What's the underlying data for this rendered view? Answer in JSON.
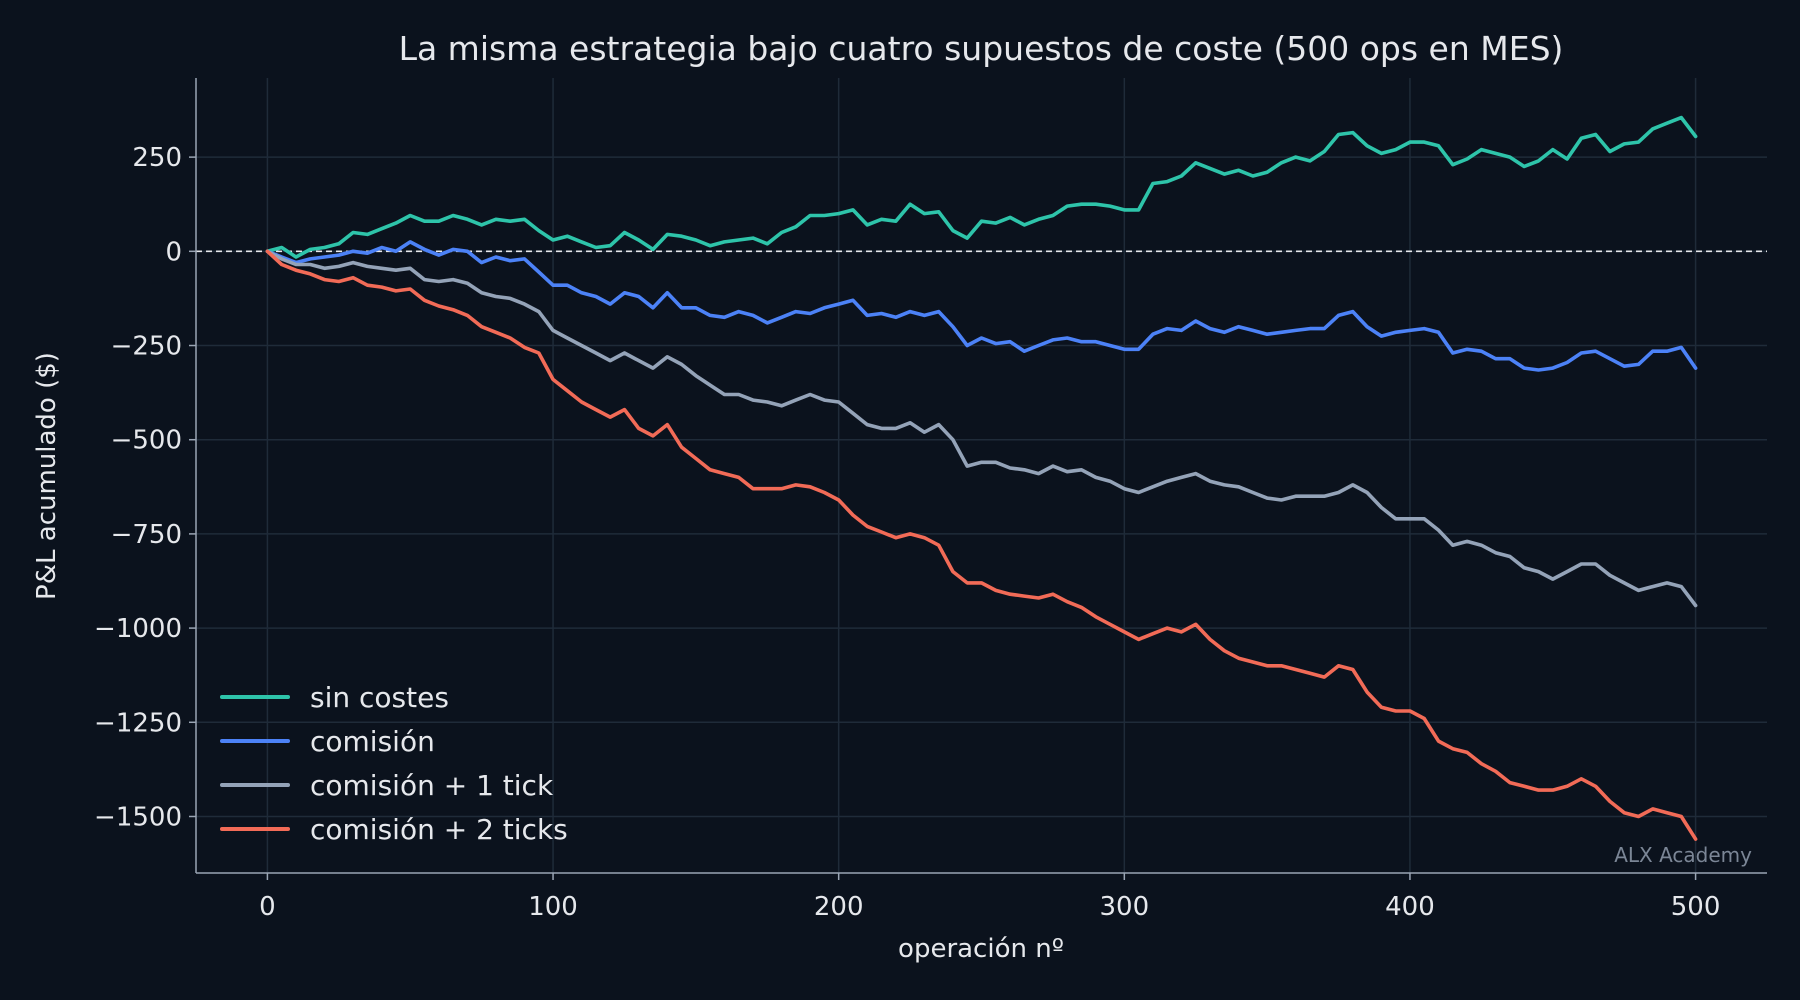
{
  "chart_data": {
    "type": "line",
    "title": "La misma estrategia bajo cuatro supuestos de coste (500 ops en MES)",
    "xlabel": "operación nº",
    "ylabel": "P&L acumulado ($)",
    "xlim": [
      -25,
      525
    ],
    "ylim": [
      -1650,
      460
    ],
    "xticks": [
      0,
      100,
      200,
      300,
      400,
      500
    ],
    "xtick_labels": [
      "0",
      "100",
      "200",
      "300",
      "400",
      "500"
    ],
    "yticks": [
      250,
      0,
      -250,
      -500,
      -750,
      -1000,
      -1250,
      -1500
    ],
    "ytick_labels": [
      "250",
      "0",
      "−250",
      "−500",
      "−750",
      "−1000",
      "−1250",
      "−1500"
    ],
    "reference_line": {
      "y": 0,
      "style": "dashed"
    },
    "grid": true,
    "legend_position": "lower-left",
    "series": [
      {
        "name": "sin costes",
        "color": "#2ec4aa",
        "x": [
          0,
          5,
          10,
          15,
          20,
          25,
          30,
          35,
          40,
          45,
          50,
          55,
          60,
          65,
          70,
          75,
          80,
          85,
          90,
          95,
          100,
          105,
          110,
          115,
          120,
          125,
          130,
          135,
          140,
          145,
          150,
          155,
          160,
          165,
          170,
          175,
          180,
          185,
          190,
          195,
          200,
          205,
          210,
          215,
          220,
          225,
          230,
          235,
          240,
          245,
          250,
          255,
          260,
          265,
          270,
          275,
          280,
          285,
          290,
          295,
          300,
          305,
          310,
          315,
          320,
          325,
          330,
          335,
          340,
          345,
          350,
          355,
          360,
          365,
          370,
          375,
          380,
          385,
          390,
          395,
          400,
          405,
          410,
          415,
          420,
          425,
          430,
          435,
          440,
          445,
          450,
          455,
          460,
          465,
          470,
          475,
          480,
          485,
          490,
          495,
          500
        ],
        "y": [
          0,
          10,
          -15,
          5,
          10,
          20,
          50,
          45,
          60,
          75,
          95,
          80,
          80,
          95,
          85,
          70,
          85,
          80,
          85,
          55,
          30,
          40,
          25,
          10,
          15,
          50,
          30,
          5,
          45,
          40,
          30,
          15,
          25,
          30,
          35,
          20,
          50,
          65,
          95,
          95,
          100,
          110,
          70,
          85,
          80,
          125,
          100,
          105,
          55,
          35,
          80,
          75,
          90,
          70,
          85,
          95,
          120,
          125,
          125,
          120,
          110,
          110,
          180,
          185,
          200,
          235,
          220,
          205,
          215,
          200,
          210,
          235,
          250,
          240,
          265,
          310,
          315,
          280,
          260,
          270,
          290,
          290,
          280,
          230,
          245,
          270,
          260,
          250,
          225,
          240,
          270,
          245,
          300,
          310,
          265,
          285,
          290,
          325,
          340,
          355,
          305
        ]
      },
      {
        "name": "comisión",
        "color": "#4c82f7",
        "x": [
          0,
          5,
          10,
          15,
          20,
          25,
          30,
          35,
          40,
          45,
          50,
          55,
          60,
          65,
          70,
          75,
          80,
          85,
          90,
          95,
          100,
          105,
          110,
          115,
          120,
          125,
          130,
          135,
          140,
          145,
          150,
          155,
          160,
          165,
          170,
          175,
          180,
          185,
          190,
          195,
          200,
          205,
          210,
          215,
          220,
          225,
          230,
          235,
          240,
          245,
          250,
          255,
          260,
          265,
          270,
          275,
          280,
          285,
          290,
          295,
          300,
          305,
          310,
          315,
          320,
          325,
          330,
          335,
          340,
          345,
          350,
          355,
          360,
          365,
          370,
          375,
          380,
          385,
          390,
          395,
          400,
          405,
          410,
          415,
          420,
          425,
          430,
          435,
          440,
          445,
          450,
          455,
          460,
          465,
          470,
          475,
          480,
          485,
          490,
          495,
          500
        ],
        "y": [
          0,
          -15,
          -30,
          -20,
          -15,
          -10,
          0,
          -5,
          10,
          0,
          25,
          5,
          -10,
          5,
          0,
          -30,
          -15,
          -25,
          -20,
          -55,
          -90,
          -90,
          -110,
          -120,
          -140,
          -110,
          -120,
          -150,
          -110,
          -150,
          -150,
          -170,
          -175,
          -160,
          -170,
          -190,
          -175,
          -160,
          -165,
          -150,
          -140,
          -130,
          -170,
          -165,
          -175,
          -160,
          -170,
          -160,
          -200,
          -250,
          -230,
          -245,
          -240,
          -265,
          -250,
          -235,
          -230,
          -240,
          -240,
          -250,
          -260,
          -260,
          -220,
          -205,
          -210,
          -185,
          -205,
          -215,
          -200,
          -210,
          -220,
          -215,
          -210,
          -205,
          -205,
          -170,
          -160,
          -200,
          -225,
          -215,
          -210,
          -205,
          -215,
          -270,
          -260,
          -265,
          -285,
          -285,
          -310,
          -315,
          -310,
          -295,
          -270,
          -265,
          -285,
          -305,
          -300,
          -265,
          -265,
          -255,
          -310
        ]
      },
      {
        "name": "comisión + 1 tick",
        "color": "#94a3b8",
        "x": [
          0,
          5,
          10,
          15,
          20,
          25,
          30,
          35,
          40,
          45,
          50,
          55,
          60,
          65,
          70,
          75,
          80,
          85,
          90,
          95,
          100,
          105,
          110,
          115,
          120,
          125,
          130,
          135,
          140,
          145,
          150,
          155,
          160,
          165,
          170,
          175,
          180,
          185,
          190,
          195,
          200,
          205,
          210,
          215,
          220,
          225,
          230,
          235,
          240,
          245,
          250,
          255,
          260,
          265,
          270,
          275,
          280,
          285,
          290,
          295,
          300,
          305,
          310,
          315,
          320,
          325,
          330,
          335,
          340,
          345,
          350,
          355,
          360,
          365,
          370,
          375,
          380,
          385,
          390,
          395,
          400,
          405,
          410,
          415,
          420,
          425,
          430,
          435,
          440,
          445,
          450,
          455,
          460,
          465,
          470,
          475,
          480,
          485,
          490,
          495,
          500
        ],
        "y": [
          0,
          -20,
          -35,
          -35,
          -45,
          -40,
          -30,
          -40,
          -45,
          -50,
          -45,
          -75,
          -80,
          -75,
          -85,
          -110,
          -120,
          -125,
          -140,
          -160,
          -210,
          -230,
          -250,
          -270,
          -290,
          -270,
          -290,
          -310,
          -280,
          -300,
          -330,
          -355,
          -380,
          -380,
          -395,
          -400,
          -410,
          -395,
          -380,
          -395,
          -400,
          -430,
          -460,
          -470,
          -470,
          -455,
          -480,
          -460,
          -500,
          -570,
          -560,
          -560,
          -575,
          -580,
          -590,
          -570,
          -585,
          -580,
          -600,
          -610,
          -630,
          -640,
          -625,
          -610,
          -600,
          -590,
          -610,
          -620,
          -625,
          -640,
          -655,
          -660,
          -650,
          -650,
          -650,
          -640,
          -620,
          -640,
          -680,
          -710,
          -710,
          -710,
          -740,
          -780,
          -770,
          -780,
          -800,
          -810,
          -840,
          -850,
          -870,
          -850,
          -830,
          -830,
          -860,
          -880,
          -900,
          -890,
          -880,
          -890,
          -940
        ]
      },
      {
        "name": "comisión + 2 ticks",
        "color": "#f26b57",
        "x": [
          0,
          5,
          10,
          15,
          20,
          25,
          30,
          35,
          40,
          45,
          50,
          55,
          60,
          65,
          70,
          75,
          80,
          85,
          90,
          95,
          100,
          105,
          110,
          115,
          120,
          125,
          130,
          135,
          140,
          145,
          150,
          155,
          160,
          165,
          170,
          175,
          180,
          185,
          190,
          195,
          200,
          205,
          210,
          215,
          220,
          225,
          230,
          235,
          240,
          245,
          250,
          255,
          260,
          265,
          270,
          275,
          280,
          285,
          290,
          295,
          300,
          305,
          310,
          315,
          320,
          325,
          330,
          335,
          340,
          345,
          350,
          355,
          360,
          365,
          370,
          375,
          380,
          385,
          390,
          395,
          400,
          405,
          410,
          415,
          420,
          425,
          430,
          435,
          440,
          445,
          450,
          455,
          460,
          465,
          470,
          475,
          480,
          485,
          490,
          495,
          500
        ],
        "y": [
          0,
          -35,
          -50,
          -60,
          -75,
          -80,
          -70,
          -90,
          -95,
          -105,
          -100,
          -130,
          -145,
          -155,
          -170,
          -200,
          -215,
          -230,
          -255,
          -270,
          -340,
          -370,
          -400,
          -420,
          -440,
          -420,
          -470,
          -490,
          -460,
          -520,
          -550,
          -580,
          -590,
          -600,
          -630,
          -630,
          -630,
          -620,
          -625,
          -640,
          -660,
          -700,
          -730,
          -745,
          -760,
          -750,
          -760,
          -780,
          -850,
          -880,
          -880,
          -900,
          -910,
          -915,
          -920,
          -910,
          -930,
          -945,
          -970,
          -990,
          -1010,
          -1030,
          -1015,
          -1000,
          -1010,
          -990,
          -1030,
          -1060,
          -1080,
          -1090,
          -1100,
          -1100,
          -1110,
          -1120,
          -1130,
          -1100,
          -1110,
          -1170,
          -1210,
          -1220,
          -1220,
          -1240,
          -1300,
          -1320,
          -1330,
          -1360,
          -1380,
          -1410,
          -1420,
          -1430,
          -1430,
          -1420,
          -1400,
          -1420,
          -1460,
          -1490,
          -1500,
          -1480,
          -1490,
          -1500,
          -1560
        ]
      }
    ]
  },
  "watermark": "ALX Academy"
}
